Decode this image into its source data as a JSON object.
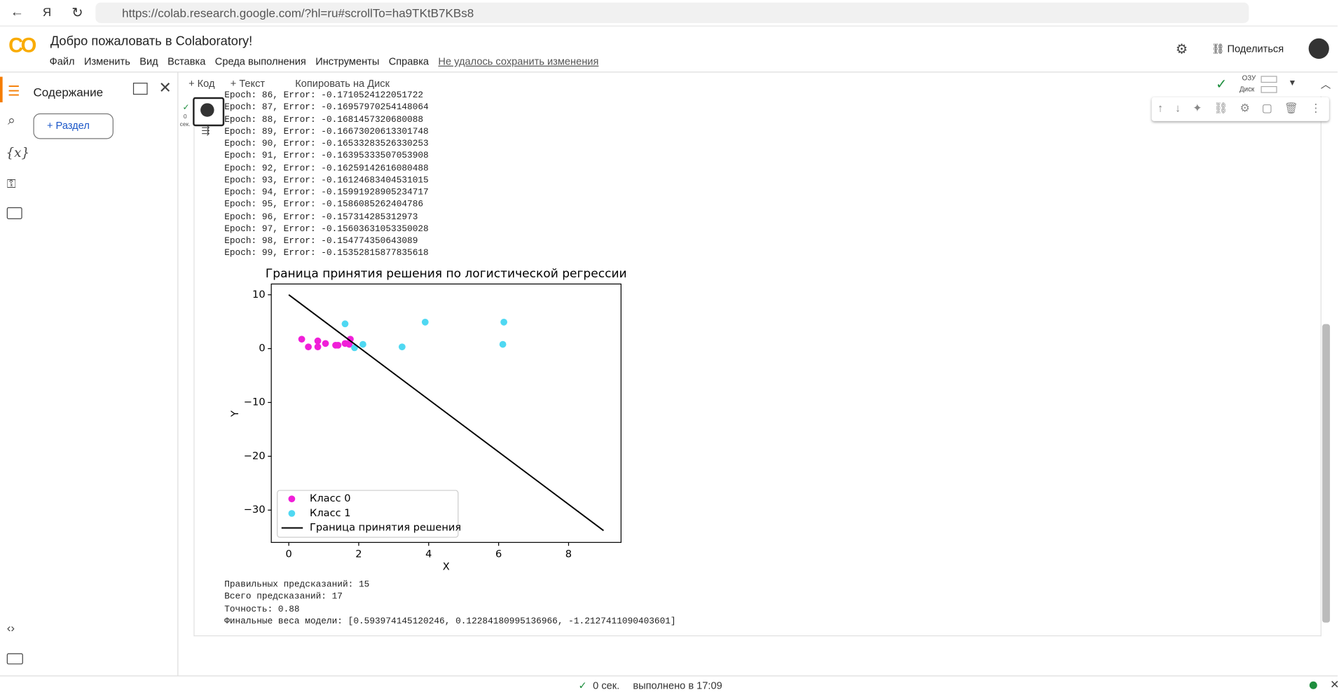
{
  "browser": {
    "url": "https://colab.research.google.com/?hl=ru#scrollTo=ha9TKtB7KBs8"
  },
  "header": {
    "logo": "CO",
    "title": "Добро пожаловать в Colaboratory!",
    "menu": [
      "Файл",
      "Изменить",
      "Вид",
      "Вставка",
      "Среда выполнения",
      "Инструменты",
      "Справка"
    ],
    "save_status": "Не удалось сохранить изменения",
    "share": "Поделиться"
  },
  "sidebar": {
    "title": "Содержание",
    "button": "Раздел",
    "variables_icon": "{x}"
  },
  "toolbar": {
    "add_code": "Код",
    "add_text": "Текст",
    "copy": "Копировать на Диск",
    "ram": "ОЗУ",
    "disk": "Диск"
  },
  "cell": {
    "exec_time": "0 сек.",
    "log": [
      "Epoch: 86, Error: -0.1710524122051722",
      "Epoch: 87, Error: -0.16957970254148064",
      "Epoch: 88, Error: -0.1681457320680088",
      "Epoch: 89, Error: -0.16673020613301748",
      "Epoch: 90, Error: -0.16533283526330253",
      "Epoch: 91, Error: -0.16395333507053908",
      "Epoch: 92, Error: -0.16259142616080488",
      "Epoch: 93, Error: -0.16124683404531015",
      "Epoch: 94, Error: -0.15991928905234717",
      "Epoch: 95, Error: -0.1586085262404786",
      "Epoch: 96, Error: -0.157314285312973",
      "Epoch: 97, Error: -0.15603631053350028",
      "Epoch: 98, Error: -0.154774350643089",
      "Epoch: 99, Error: -0.15352815877835618"
    ],
    "results": [
      "Правильных предсказаний: 15",
      "Всего предсказаний: 17",
      "Точность: 0.88",
      "Финальные веса модели: [0.593974145120246, 0.12284180995136966, -1.2127411090403601]"
    ]
  },
  "chart_data": {
    "type": "scatter",
    "title": "Граница принятия решения по логистической регрессии",
    "xlabel": "X",
    "ylabel": "Y",
    "xlim": [
      -0.5,
      9.5
    ],
    "ylim": [
      -36,
      12
    ],
    "xticks": [
      0,
      2,
      4,
      6,
      8
    ],
    "yticks": [
      10,
      0,
      {
        "value": -10,
        "label": "−10"
      },
      {
        "value": -20,
        "label": "−20"
      },
      {
        "value": -30,
        "label": "−30"
      }
    ],
    "legend": "lower left",
    "series": [
      {
        "name": "Класс 0",
        "color": "#f01fd8",
        "kind": "scatter",
        "x": [
          0.37,
          0.56,
          0.83,
          0.83,
          1.05,
          1.34,
          1.41,
          1.61,
          1.73,
          1.76
        ],
        "values": [
          1.75,
          0.32,
          1.43,
          0.32,
          0.95,
          0.63,
          0.63,
          0.95,
          0.79,
          1.75
        ]
      },
      {
        "name": "Класс 1",
        "color": "#4fd8f2",
        "kind": "scatter",
        "x": [
          1.61,
          1.88,
          2.12,
          3.24,
          3.9,
          6.15,
          6.12
        ],
        "values": [
          4.6,
          0.16,
          0.79,
          0.32,
          4.92,
          4.92,
          0.79
        ]
      },
      {
        "name": "Граница принятия решения",
        "color": "#000000",
        "kind": "line",
        "x": [
          0,
          9
        ],
        "values": [
          10,
          -33.8
        ]
      }
    ]
  },
  "status_bar": {
    "time": "0 сек.",
    "completed": "выполнено в 17:09"
  }
}
